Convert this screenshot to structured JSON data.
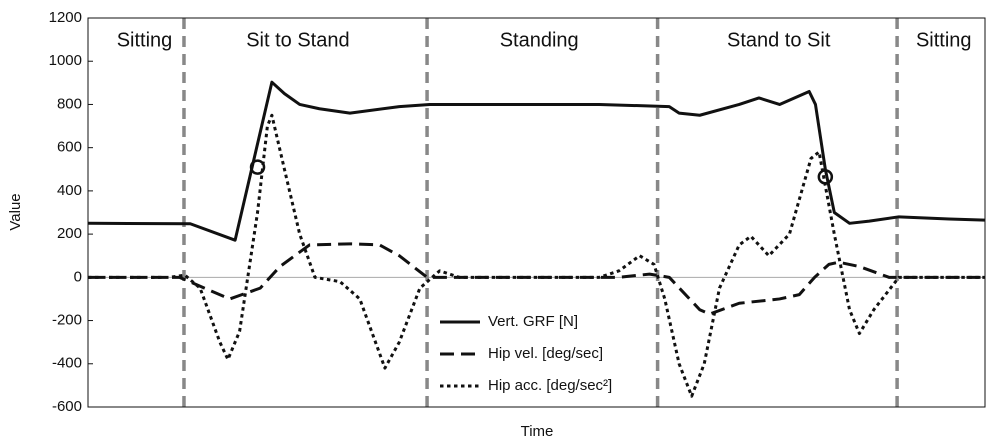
{
  "chart_data": {
    "type": "line",
    "xlabel": "Time",
    "ylabel": "Value",
    "xlim": [
      0,
      100
    ],
    "ylim": [
      -600,
      1200
    ],
    "yticks": [
      -600,
      -400,
      -200,
      0,
      200,
      400,
      600,
      800,
      1000,
      1200
    ],
    "zero_line": true,
    "legend": "lower center",
    "phases": [
      {
        "label": "Sitting",
        "x": 6.3
      },
      {
        "label": "Sit to Stand",
        "x": 23.4
      },
      {
        "label": "Standing",
        "x": 50.3
      },
      {
        "label": "Stand to Sit",
        "x": 77.0
      },
      {
        "label": "Sitting",
        "x": 95.4
      }
    ],
    "dividers": [
      10.7,
      37.8,
      63.5,
      90.2
    ],
    "divider_color": "#888888",
    "markers": {
      "x": [
        18.9,
        82.2
      ],
      "values": [
        510,
        465
      ],
      "color": "#111111"
    },
    "series": [
      {
        "name": "Vert. GRF [N]",
        "color": "#111111",
        "style": "solid",
        "x": [
          0,
          11.4,
          16.4,
          20.5,
          21.9,
          23.6,
          25.8,
          29.2,
          34.7,
          38.1,
          57.0,
          64.8,
          65.9,
          68.2,
          72.6,
          74.8,
          77.1,
          80.4,
          81.1,
          82.2,
          83.2,
          84.9,
          87.1,
          90.4,
          96.0,
          100
        ],
        "values": [
          250,
          248,
          172,
          903,
          850,
          800,
          780,
          760,
          790,
          800,
          800,
          790,
          760,
          750,
          800,
          830,
          800,
          860,
          800,
          500,
          300,
          250,
          260,
          280,
          270,
          265
        ]
      },
      {
        "name": "Hip vel. [deg/sec]",
        "color": "#111111",
        "style": "dashed",
        "x": [
          0,
          10.2,
          15.8,
          19.2,
          21.4,
          24.7,
          29.2,
          32.5,
          34.7,
          37.8,
          59.2,
          62.6,
          64.8,
          68.2,
          69.3,
          72.6,
          77.1,
          79.3,
          81.0,
          82.6,
          83.7,
          86.0,
          89.3,
          100
        ],
        "values": [
          0,
          0,
          -100,
          -50,
          50,
          150,
          155,
          150,
          100,
          0,
          0,
          15,
          0,
          -150,
          -170,
          -120,
          -100,
          -80,
          0,
          60,
          70,
          50,
          0,
          0
        ]
      },
      {
        "name": "Hip acc. [deg/sec²]",
        "color": "#111111",
        "style": "dotted",
        "x": [
          0,
          9.1,
          10.8,
          12.5,
          14.7,
          15.6,
          16.9,
          18.9,
          20.0,
          20.5,
          21.9,
          23.6,
          25.3,
          28.1,
          30.3,
          33.1,
          34.7,
          37.0,
          39.2,
          41.4,
          57.0,
          59.2,
          61.5,
          63.1,
          64.3,
          65.9,
          67.3,
          68.7,
          70.4,
          72.6,
          73.9,
          75.9,
          78.2,
          80.6,
          81.5,
          83.2,
          84.9,
          86.0,
          87.6,
          90.4,
          100
        ],
        "values": [
          0,
          0,
          10,
          -50,
          -300,
          -380,
          -250,
          300,
          700,
          750,
          500,
          200,
          0,
          -20,
          -100,
          -420,
          -300,
          -50,
          30,
          0,
          0,
          30,
          100,
          60,
          -100,
          -400,
          -550,
          -400,
          -50,
          150,
          190,
          100,
          200,
          550,
          580,
          200,
          -150,
          -260,
          -150,
          0,
          0
        ]
      }
    ]
  }
}
